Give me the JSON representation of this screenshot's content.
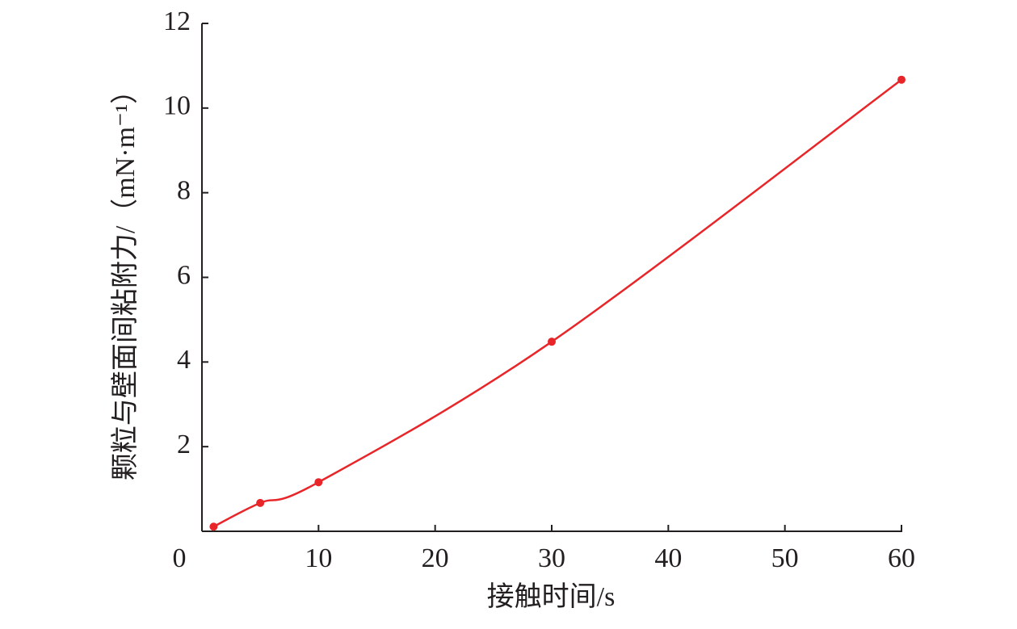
{
  "chart_data": {
    "type": "line",
    "x_label": "接触时间/s",
    "y_label": "颗粒与壁面间粘附力/（mN·m⁻¹）",
    "x": [
      1,
      5,
      10,
      30,
      60
    ],
    "values": [
      0.11,
      0.67,
      1.16,
      4.48,
      10.67
    ],
    "color": "#e8262a",
    "xlim": [
      0,
      60
    ],
    "xticks": [
      0,
      10,
      20,
      30,
      40,
      50,
      60
    ],
    "ylim": [
      0,
      12
    ],
    "yticks": [
      2,
      4,
      6,
      8,
      10,
      12
    ],
    "grid": false
  }
}
